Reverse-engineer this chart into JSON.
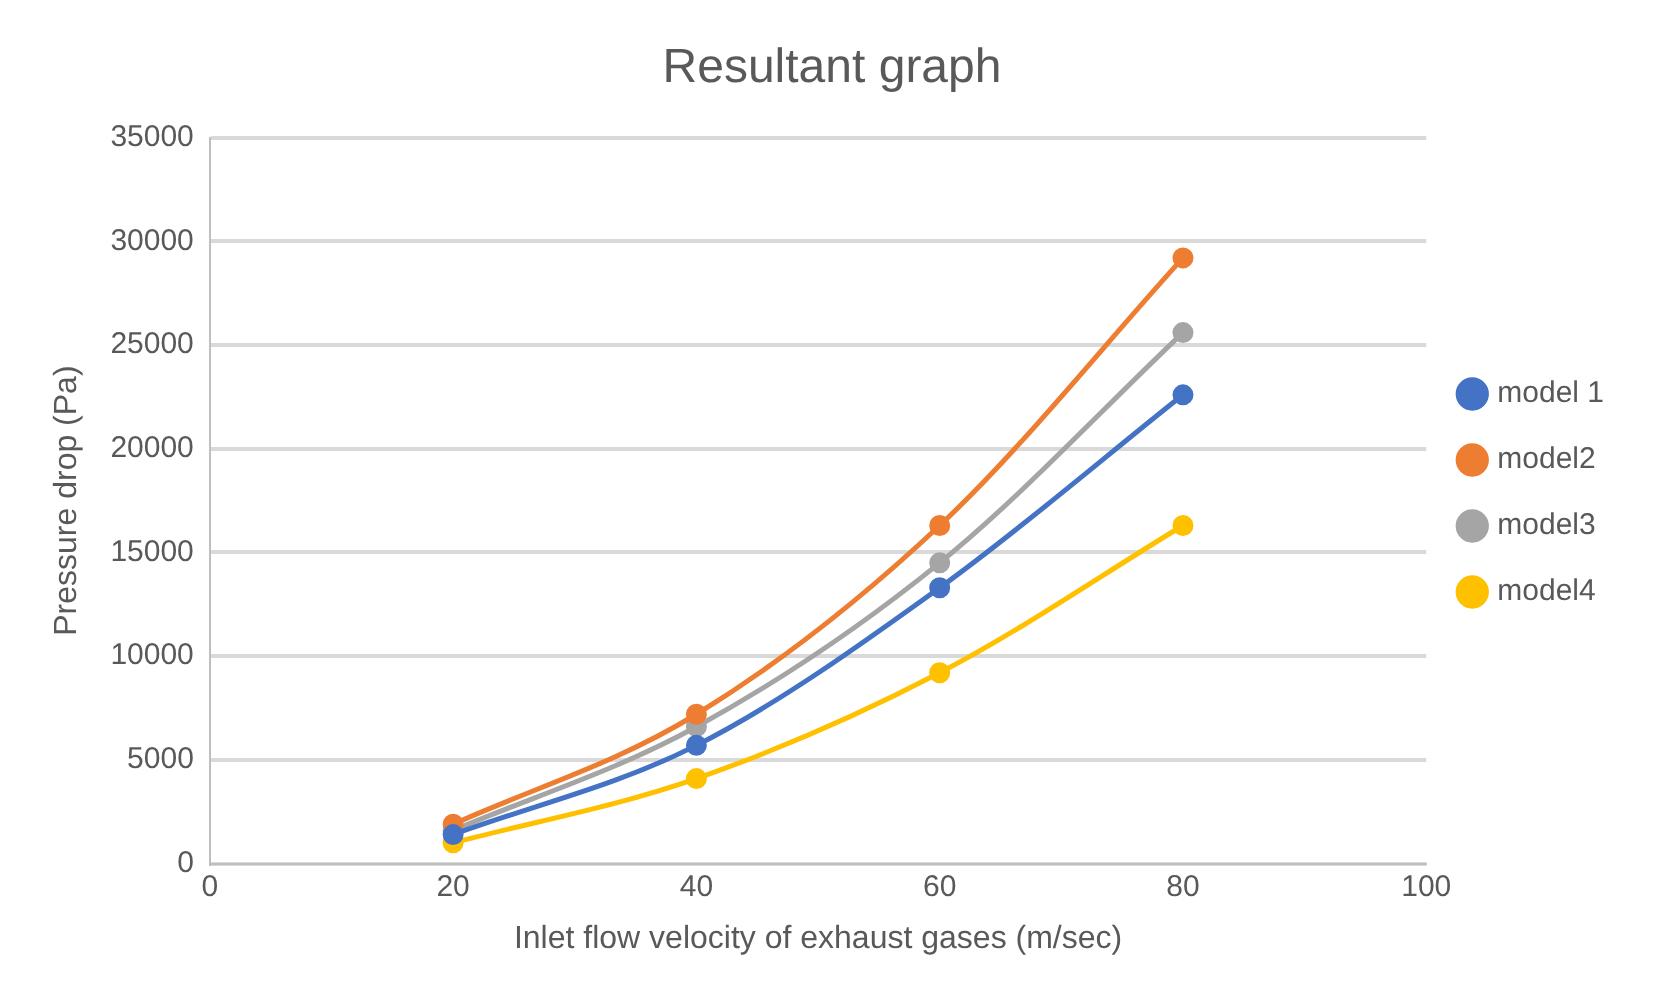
{
  "chart_data": {
    "type": "line",
    "title": "Resultant graph",
    "xlabel": "Inlet flow velocity of exhaust gases (m/sec)",
    "ylabel": "Pressure drop (Pa)",
    "x": [
      20,
      40,
      60,
      80
    ],
    "series": [
      {
        "name": "model 1",
        "color": "#4472c4",
        "values": [
          1400,
          5700,
          13300,
          22600
        ]
      },
      {
        "name": "model2",
        "color": "#ed7d31",
        "values": [
          1900,
          7200,
          16300,
          29200
        ]
      },
      {
        "name": "model3",
        "color": "#a5a5a5",
        "values": [
          1600,
          6600,
          14500,
          25600
        ]
      },
      {
        "name": "model4",
        "color": "#ffc000",
        "values": [
          1000,
          4100,
          9200,
          16300
        ]
      }
    ],
    "xlim": [
      0,
      100
    ],
    "xticks": [
      0,
      20,
      40,
      60,
      80,
      100
    ],
    "ylim": [
      0,
      35000
    ],
    "yticks": [
      0,
      5000,
      10000,
      15000,
      20000,
      25000,
      30000,
      35000
    ],
    "grid": "y",
    "legend": "right",
    "marker": "circle",
    "line_style": "solid"
  }
}
